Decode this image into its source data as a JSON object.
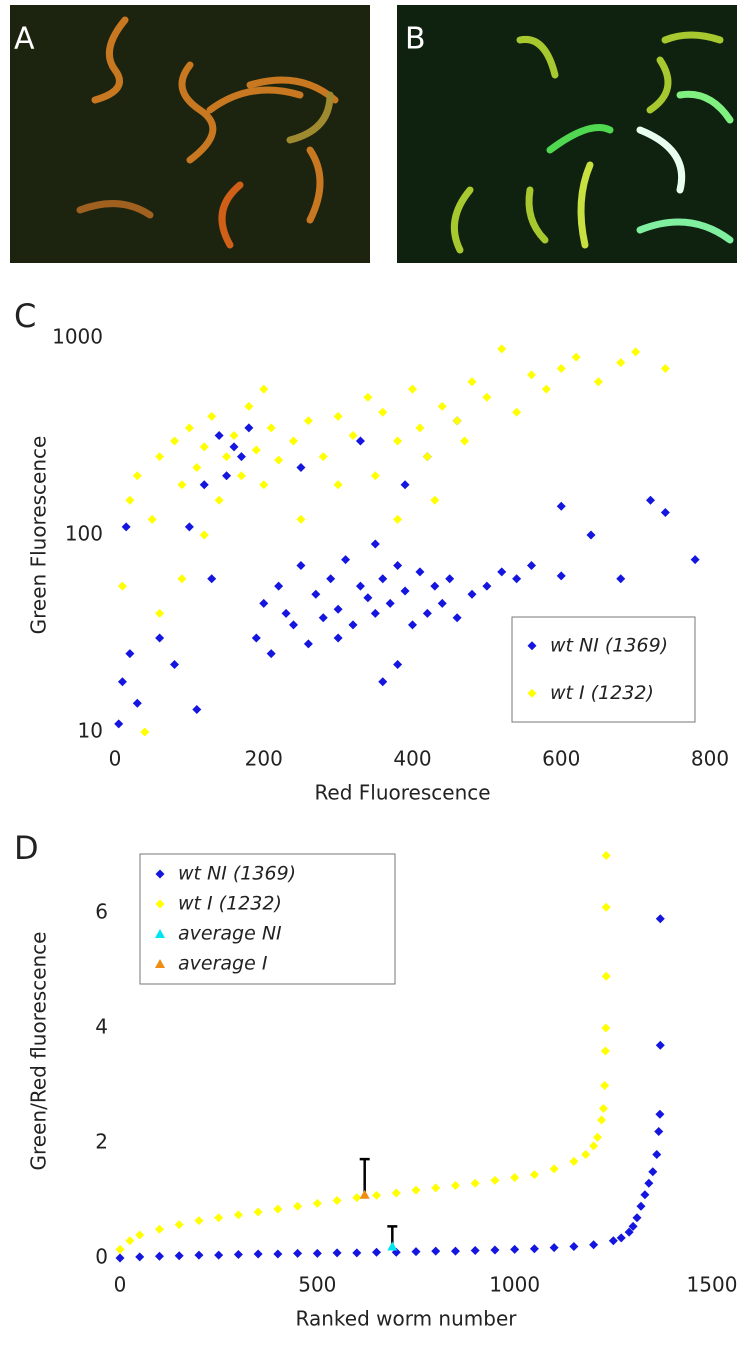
{
  "images": [
    {
      "label": "A"
    },
    {
      "label": "B"
    }
  ],
  "chart_data": [
    {
      "type": "scatter",
      "panel_label": "C",
      "x_label": "Red Fluorescence",
      "y_label": "Green Fluorescence",
      "xlim": [
        0,
        800
      ],
      "xticks": [
        0,
        200,
        400,
        600,
        800
      ],
      "ylim": [
        10,
        1000
      ],
      "yticks": [
        10,
        100,
        1000
      ],
      "log_y": true,
      "legend": "lower right",
      "series": [
        {
          "name": "wt NI (1369)",
          "color": "#1515e0",
          "marker": "diamond",
          "x": [
            5,
            10,
            20,
            30,
            60,
            80,
            110,
            130,
            150,
            170,
            190,
            200,
            210,
            220,
            230,
            240,
            250,
            260,
            270,
            280,
            290,
            300,
            300,
            310,
            320,
            330,
            340,
            350,
            350,
            360,
            370,
            380,
            390,
            400,
            410,
            420,
            430,
            440,
            450,
            460,
            480,
            500,
            520,
            540,
            560,
            600,
            640,
            680,
            720,
            780,
            120,
            140,
            160,
            180,
            100,
            360,
            380,
            600,
            740,
            15,
            250,
            330,
            420,
            460,
            390
          ],
          "values": [
            11,
            18,
            25,
            14,
            30,
            22,
            13,
            60,
            200,
            250,
            30,
            45,
            25,
            55,
            40,
            35,
            70,
            28,
            50,
            38,
            60,
            42,
            30,
            75,
            35,
            55,
            48,
            90,
            40,
            60,
            45,
            70,
            52,
            35,
            65,
            40,
            55,
            45,
            60,
            38,
            50,
            55,
            65,
            60,
            70,
            62,
            100,
            60,
            150,
            75,
            180,
            320,
            280,
            350,
            110,
            18,
            22,
            140,
            130,
            110,
            220,
            300,
            250,
            380,
            180
          ]
        },
        {
          "name": "wt I (1232)",
          "color": "#ffff00",
          "marker": "diamond",
          "x": [
            10,
            20,
            30,
            40,
            50,
            60,
            80,
            90,
            100,
            110,
            120,
            130,
            140,
            150,
            160,
            170,
            180,
            190,
            200,
            210,
            220,
            240,
            260,
            280,
            300,
            320,
            340,
            350,
            360,
            380,
            400,
            410,
            420,
            440,
            460,
            480,
            500,
            520,
            540,
            560,
            580,
            600,
            620,
            650,
            680,
            700,
            740,
            430,
            380,
            300,
            250,
            90,
            60,
            120,
            200,
            470
          ],
          "values": [
            55,
            150,
            200,
            10,
            120,
            250,
            300,
            180,
            350,
            220,
            280,
            400,
            150,
            250,
            320,
            200,
            450,
            270,
            180,
            350,
            240,
            300,
            380,
            250,
            400,
            320,
            500,
            200,
            420,
            300,
            550,
            350,
            250,
            450,
            380,
            600,
            500,
            880,
            420,
            650,
            550,
            700,
            800,
            600,
            750,
            850,
            700,
            150,
            120,
            180,
            120,
            60,
            40,
            100,
            550,
            300
          ]
        }
      ]
    },
    {
      "type": "scatter",
      "panel_label": "D",
      "x_label": "Ranked worm number",
      "y_label": "Green/Red fluorescence",
      "xlim": [
        0,
        1500
      ],
      "xticks": [
        0,
        500,
        1000,
        1500
      ],
      "ylim": [
        0,
        7.2
      ],
      "yticks": [
        0,
        2,
        4,
        6
      ],
      "log_y": false,
      "legend": "upper left",
      "series": [
        {
          "name": "wt NI (1369)",
          "color": "#1515e0",
          "marker": "diamond",
          "x": [
            0,
            50,
            100,
            150,
            200,
            250,
            300,
            350,
            400,
            450,
            500,
            550,
            600,
            650,
            700,
            750,
            800,
            850,
            900,
            950,
            1000,
            1050,
            1100,
            1150,
            1200,
            1250,
            1270,
            1290,
            1300,
            1310,
            1320,
            1330,
            1340,
            1350,
            1360,
            1365,
            1368,
            1369,
            1369
          ],
          "values": [
            0.0,
            0.02,
            0.03,
            0.04,
            0.05,
            0.05,
            0.06,
            0.07,
            0.07,
            0.08,
            0.08,
            0.09,
            0.09,
            0.1,
            0.1,
            0.11,
            0.12,
            0.12,
            0.13,
            0.14,
            0.15,
            0.16,
            0.18,
            0.2,
            0.23,
            0.3,
            0.35,
            0.45,
            0.55,
            0.7,
            0.9,
            1.1,
            1.3,
            1.5,
            1.8,
            2.2,
            2.5,
            3.7,
            5.9
          ]
        },
        {
          "name": "wt I (1232)",
          "color": "#ffff00",
          "marker": "diamond",
          "x": [
            0,
            25,
            50,
            100,
            150,
            200,
            250,
            300,
            350,
            400,
            450,
            500,
            550,
            600,
            650,
            700,
            750,
            800,
            850,
            900,
            950,
            1000,
            1050,
            1100,
            1150,
            1180,
            1200,
            1210,
            1220,
            1225,
            1228,
            1230,
            1231,
            1232,
            1232,
            1232
          ],
          "values": [
            0.15,
            0.3,
            0.4,
            0.5,
            0.58,
            0.65,
            0.7,
            0.75,
            0.8,
            0.85,
            0.9,
            0.95,
            1.0,
            1.05,
            1.09,
            1.13,
            1.18,
            1.22,
            1.26,
            1.3,
            1.35,
            1.4,
            1.45,
            1.55,
            1.68,
            1.8,
            1.95,
            2.1,
            2.4,
            2.6,
            3.0,
            3.6,
            4.0,
            4.9,
            6.1,
            7.0
          ]
        },
        {
          "name": "average NI",
          "color": "#00e5f0",
          "marker": "triangle",
          "x": [
            690
          ],
          "values": [
            0.2
          ],
          "errors": [
            0.35
          ]
        },
        {
          "name": "average I",
          "color": "#f08c10",
          "marker": "triangle",
          "x": [
            620
          ],
          "values": [
            1.1
          ],
          "errors": [
            0.62
          ]
        }
      ]
    }
  ]
}
